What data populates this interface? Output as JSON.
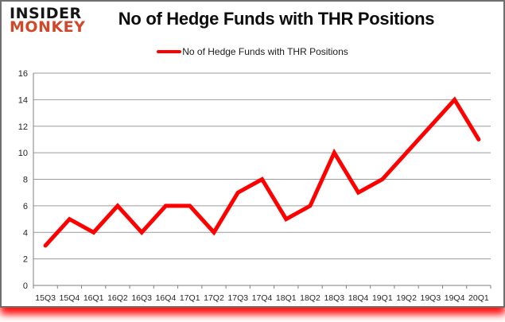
{
  "branding": {
    "logo_line1": "INSIDER",
    "logo_line2": "MONKEY",
    "logo_color_primary": "#161616",
    "logo_color_secondary": "#d0472a"
  },
  "header": {
    "title": "No of Hedge Funds with THR Positions"
  },
  "legend": {
    "label": "No of Hedge Funds with THR Positions",
    "swatch_color": "#ff0000"
  },
  "chart_data": {
    "type": "line",
    "title": "No of Hedge Funds with THR Positions",
    "categories": [
      "15Q3",
      "15Q4",
      "16Q1",
      "16Q2",
      "16Q3",
      "16Q4",
      "17Q1",
      "17Q2",
      "17Q3",
      "17Q4",
      "18Q1",
      "18Q2",
      "18Q3",
      "18Q4",
      "19Q1",
      "19Q2",
      "19Q3",
      "19Q4",
      "20Q1"
    ],
    "series": [
      {
        "name": "No of Hedge Funds with THR Positions",
        "color": "#ff0000",
        "values": [
          3,
          5,
          4,
          6,
          4,
          6,
          6,
          4,
          7,
          8,
          5,
          6,
          10,
          7,
          8,
          10,
          12,
          14,
          11
        ]
      }
    ],
    "xlabel": "",
    "ylabel": "",
    "ylim": [
      0,
      16
    ],
    "ytick_step": 2,
    "grid": true,
    "gridline_color": "#9b9b9b",
    "axis_color": "#7f7f7f",
    "legend_position": "top"
  }
}
